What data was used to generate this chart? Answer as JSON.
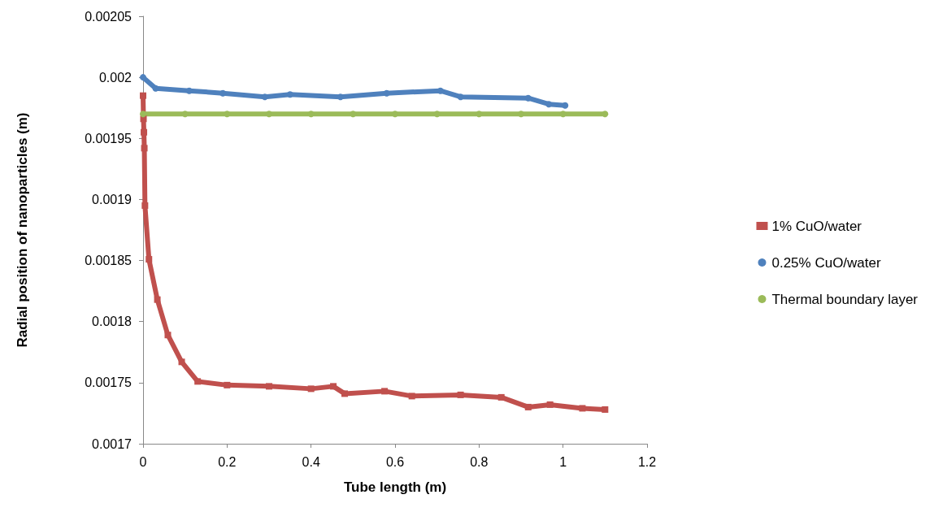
{
  "chart_data": {
    "type": "line",
    "xlabel": "Tube length (m)",
    "ylabel": "Radial position of nanoparticles (m)",
    "xlim": [
      0,
      1.2
    ],
    "xticks": [
      0,
      0.2,
      0.4,
      0.6,
      0.8,
      1,
      1.2
    ],
    "ylim": [
      0.0017,
      0.00205
    ],
    "yticks": [
      0.0017,
      0.00175,
      0.0018,
      0.00185,
      0.0019,
      0.00195,
      0.002,
      0.00205
    ],
    "grid": false,
    "legend": "right",
    "line_style": "solid",
    "series": [
      {
        "name": "1% CuO/water",
        "color": "#c0504d",
        "marker": "square",
        "x": [
          0,
          0.001,
          0.002,
          0.003,
          0.0045,
          0.014,
          0.034,
          0.059,
          0.092,
          0.13,
          0.2,
          0.3,
          0.4,
          0.453,
          0.48,
          0.575,
          0.64,
          0.756,
          0.853,
          0.917,
          0.969,
          1.046,
          1.1
        ],
        "values": [
          0.001985,
          0.001966,
          0.001955,
          0.001942,
          0.001895,
          0.001851,
          0.001818,
          0.001789,
          0.001767,
          0.001751,
          0.001748,
          0.001747,
          0.001745,
          0.001747,
          0.001741,
          0.001743,
          0.001739,
          0.00174,
          0.001738,
          0.00173,
          0.001732,
          0.001729,
          0.001728
        ]
      },
      {
        "name": "0.25% CuO/water",
        "color": "#4f81bd",
        "marker": "circle",
        "x": [
          0,
          0.03,
          0.11,
          0.19,
          0.29,
          0.35,
          0.47,
          0.58,
          0.708,
          0.756,
          0.917,
          0.966,
          1.005
        ],
        "values": [
          0.002,
          0.001991,
          0.001989,
          0.001987,
          0.001984,
          0.001986,
          0.001984,
          0.001987,
          0.001989,
          0.001984,
          0.001983,
          0.001978,
          0.001977
        ]
      },
      {
        "name": "Thermal boundary layer",
        "color": "#9bbb59",
        "marker": "circle",
        "x": [
          0,
          0.1,
          0.2,
          0.3,
          0.4,
          0.5,
          0.6,
          0.7,
          0.8,
          0.9,
          1,
          1.1
        ],
        "values": [
          0.00197,
          0.00197,
          0.00197,
          0.00197,
          0.00197,
          0.00197,
          0.00197,
          0.00197,
          0.00197,
          0.00197,
          0.00197,
          0.00197
        ]
      }
    ]
  }
}
